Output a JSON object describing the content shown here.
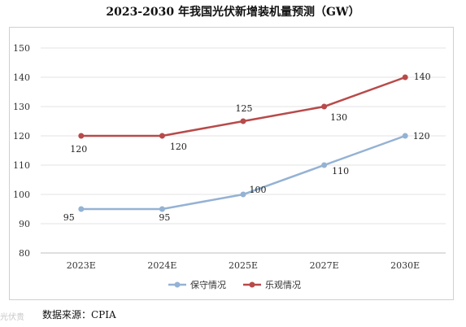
{
  "chart_data": {
    "type": "line",
    "title": "2023-2030 年我国光伏新增装机量预测（GW）",
    "categories": [
      "2023E",
      "2024E",
      "2025E",
      "2027E",
      "2030E"
    ],
    "series": [
      {
        "name": "保守情况",
        "values": [
          95,
          95,
          100,
          110,
          120
        ],
        "color": "#94b2d4"
      },
      {
        "name": "乐观情况",
        "values": [
          120,
          120,
          125,
          130,
          140
        ],
        "color": "#b84a4a"
      }
    ],
    "ylim": [
      80,
      150
    ],
    "yticks": [
      80,
      90,
      100,
      110,
      120,
      130,
      140,
      150
    ],
    "grid": true,
    "legend": "bottom"
  },
  "source": "数据来源：CPIA",
  "watermark": "光伏贵"
}
